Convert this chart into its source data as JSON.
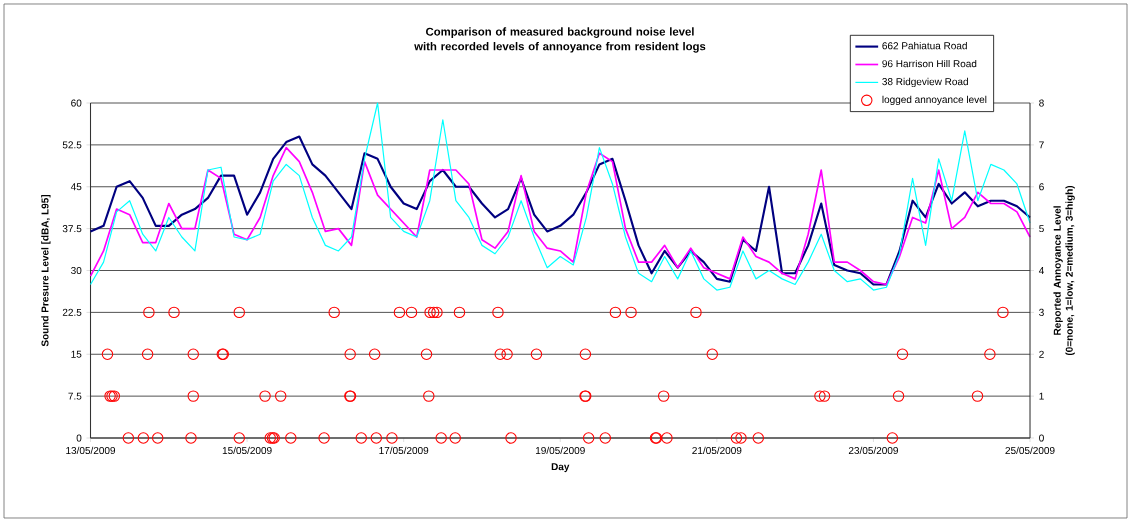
{
  "chart_data": {
    "type": "line",
    "title": "Comparison of measured background noise level with recorded levels of annoyance from resident logs",
    "xlabel": "Day",
    "ylabel": "Sound Presure Level  [dBA, L95]",
    "y2label": "Reported Annoyance Level (0=none, 1=low, 2=medium, 3=high)",
    "x": [
      "2009-05-13T00:00",
      "2009-05-13T04:00",
      "2009-05-13T08:00",
      "2009-05-13T12:00",
      "2009-05-13T16:00",
      "2009-05-13T20:00",
      "2009-05-14T00:00",
      "2009-05-14T04:00",
      "2009-05-14T08:00",
      "2009-05-14T12:00",
      "2009-05-14T16:00",
      "2009-05-14T20:00",
      "2009-05-15T00:00",
      "2009-05-15T04:00",
      "2009-05-15T08:00",
      "2009-05-15T12:00",
      "2009-05-15T16:00",
      "2009-05-15T20:00",
      "2009-05-16T00:00",
      "2009-05-16T04:00",
      "2009-05-16T08:00",
      "2009-05-16T12:00",
      "2009-05-16T16:00",
      "2009-05-16T20:00",
      "2009-05-17T00:00",
      "2009-05-17T04:00",
      "2009-05-17T08:00",
      "2009-05-17T12:00",
      "2009-05-17T16:00",
      "2009-05-17T20:00",
      "2009-05-18T00:00",
      "2009-05-18T04:00",
      "2009-05-18T08:00",
      "2009-05-18T12:00",
      "2009-05-18T16:00",
      "2009-05-18T20:00",
      "2009-05-19T00:00",
      "2009-05-19T04:00",
      "2009-05-19T08:00",
      "2009-05-19T12:00",
      "2009-05-19T16:00",
      "2009-05-19T20:00",
      "2009-05-20T00:00",
      "2009-05-20T04:00",
      "2009-05-20T08:00",
      "2009-05-20T12:00",
      "2009-05-20T16:00",
      "2009-05-20T20:00",
      "2009-05-21T00:00",
      "2009-05-21T04:00",
      "2009-05-21T08:00",
      "2009-05-21T12:00",
      "2009-05-21T16:00",
      "2009-05-21T20:00",
      "2009-05-22T00:00",
      "2009-05-22T04:00",
      "2009-05-22T08:00",
      "2009-05-22T12:00",
      "2009-05-22T16:00",
      "2009-05-22T20:00",
      "2009-05-23T00:00",
      "2009-05-23T04:00",
      "2009-05-23T08:00",
      "2009-05-23T12:00",
      "2009-05-23T16:00",
      "2009-05-23T20:00",
      "2009-05-24T00:00",
      "2009-05-24T04:00",
      "2009-05-24T08:00",
      "2009-05-24T12:00",
      "2009-05-24T16:00",
      "2009-05-24T20:00",
      "2009-05-25T00:00"
    ],
    "xlim": [
      "2009-05-13",
      "2009-05-25"
    ],
    "xticks": [
      {
        "value": "2009-05-13",
        "label": "13/05/2009"
      },
      {
        "value": "2009-05-15",
        "label": "15/05/2009"
      },
      {
        "value": "2009-05-17",
        "label": "17/05/2009"
      },
      {
        "value": "2009-05-19",
        "label": "19/05/2009"
      },
      {
        "value": "2009-05-21",
        "label": "21/05/2009"
      },
      {
        "value": "2009-05-23",
        "label": "23/05/2009"
      },
      {
        "value": "2009-05-25",
        "label": "25/05/2009"
      }
    ],
    "ylim": [
      0,
      60
    ],
    "yticks": [
      0,
      7.5,
      15,
      22.5,
      30,
      37.5,
      45,
      52.5,
      60
    ],
    "y2lim": [
      0,
      8
    ],
    "y2ticks": [
      0,
      1,
      2,
      3,
      4,
      5,
      6,
      7,
      8
    ],
    "grid": "y",
    "legend": "top right",
    "series": [
      {
        "name": "662 Pahiatua Road",
        "color": "#000080",
        "values": [
          37,
          38,
          45,
          46,
          43,
          38,
          38,
          40,
          41,
          43,
          47,
          47,
          40,
          44,
          50,
          53,
          54,
          49,
          47,
          44,
          41,
          51,
          50,
          45,
          42,
          41,
          46,
          48,
          45,
          45,
          42,
          39.5,
          41,
          46.5,
          40,
          37,
          38,
          40,
          44,
          49,
          50,
          42.5,
          34.5,
          29.5,
          33.5,
          30.5,
          33.5,
          31.5,
          28.5,
          28,
          35.5,
          33.5,
          45,
          29.5,
          29.5,
          34.5,
          42,
          31,
          30,
          29.5,
          27.5,
          27.5,
          33.5,
          42.5,
          39.5,
          45.5,
          42,
          44,
          41.5,
          42.5,
          42.5,
          41.5,
          39.5
        ]
      },
      {
        "name": "96 Harrison Hill Road",
        "color": "#ff00ff",
        "values": [
          29,
          33.5,
          41,
          40,
          35,
          35,
          42,
          37.5,
          37.5,
          48,
          46.5,
          36.5,
          35.5,
          39.5,
          47,
          52,
          49.5,
          44,
          37,
          37.5,
          34.5,
          49.5,
          43.5,
          41,
          38.5,
          36,
          48,
          48,
          48,
          45.5,
          35.5,
          34,
          37,
          47,
          37,
          34,
          33.5,
          31.5,
          44,
          51,
          49.5,
          37.5,
          31.5,
          31.5,
          34.5,
          30.5,
          34,
          30.5,
          29.5,
          28.5,
          36,
          32.5,
          31.5,
          29.5,
          28.5,
          36.5,
          48,
          31.5,
          31.5,
          30,
          28,
          27.5,
          32.5,
          39.5,
          38.5,
          48,
          37.5,
          39.5,
          44,
          42,
          42,
          40.5,
          36
        ]
      },
      {
        "name": "38 Ridgeview  Road",
        "color": "#00ffff",
        "values": [
          27.5,
          31.5,
          40.5,
          42.5,
          36.5,
          33.5,
          39.5,
          36,
          33.5,
          48,
          48.5,
          36,
          35.5,
          36.5,
          46,
          49,
          47,
          39.5,
          34.5,
          33.5,
          36,
          50,
          60,
          39.5,
          37,
          36,
          42.5,
          57,
          42.5,
          39.5,
          34.5,
          33,
          36,
          42.5,
          36,
          30.5,
          32.5,
          31,
          39.5,
          52,
          45.5,
          36,
          29.5,
          28,
          32.5,
          28.5,
          33.5,
          28.5,
          26.5,
          27,
          33.5,
          28.5,
          30,
          28.5,
          27.5,
          31.5,
          36.5,
          30,
          28,
          28.5,
          26.5,
          27,
          33,
          46.5,
          34.5,
          50,
          42.5,
          55,
          42.5,
          49,
          48,
          45.5,
          38.5
        ]
      },
      {
        "name": "logged annoyance level",
        "type": "scatter",
        "axis": "y2",
        "marker": "circle",
        "color": "#ff0000",
        "x": [
          "2009-05-13T17:54",
          "2009-05-14T01:36",
          "2009-05-14T21:36",
          "2009-05-16T02:42",
          "2009-05-16T22:42",
          "2009-05-17T02:24",
          "2009-05-17T08:06",
          "2009-05-17T09:12",
          "2009-05-17T10:12",
          "2009-05-17T17:06",
          "2009-05-18T04:54",
          "2009-05-19T16:54",
          "2009-05-19T21:42",
          "2009-05-20T17:36",
          "2009-05-24T15:42",
          "2009-05-13T05:12",
          "2009-05-13T17:30",
          "2009-05-14T07:30",
          "2009-05-14T16:24",
          "2009-05-14T16:42",
          "2009-05-16T07:36",
          "2009-05-16T15:06",
          "2009-05-17T07:00",
          "2009-05-18T05:36",
          "2009-05-18T07:42",
          "2009-05-18T16:42",
          "2009-05-19T07:42",
          "2009-05-20T22:36",
          "2009-05-23T08:54",
          "2009-05-24T11:42",
          "2009-05-13T06:00",
          "2009-05-13T06:36",
          "2009-05-13T07:18",
          "2009-05-14T07:30",
          "2009-05-15T05:30",
          "2009-05-15T10:18",
          "2009-05-16T07:30",
          "2009-05-16T07:42",
          "2009-05-17T07:42",
          "2009-05-19T07:36",
          "2009-05-19T07:48",
          "2009-05-20T07:42",
          "2009-05-22T07:36",
          "2009-05-22T09:00",
          "2009-05-23T07:42",
          "2009-05-24T07:54",
          "2009-05-13T11:36",
          "2009-05-13T16:12",
          "2009-05-13T20:36",
          "2009-05-14T06:48",
          "2009-05-14T21:36",
          "2009-05-15T07:06",
          "2009-05-15T07:48",
          "2009-05-15T08:18",
          "2009-05-15T13:24",
          "2009-05-15T23:36",
          "2009-05-16T11:00",
          "2009-05-16T15:36",
          "2009-05-16T20:24",
          "2009-05-17T11:30",
          "2009-05-17T15:48",
          "2009-05-18T08:54",
          "2009-05-19T08:42",
          "2009-05-19T13:48",
          "2009-05-20T05:12",
          "2009-05-20T05:30",
          "2009-05-20T08:42",
          "2009-05-21T06:00",
          "2009-05-21T07:24",
          "2009-05-21T12:42",
          "2009-05-23T05:48"
        ],
        "values": [
          3,
          3,
          3,
          3,
          3,
          3,
          3,
          3,
          3,
          3,
          3,
          3,
          3,
          3,
          3,
          2,
          2,
          2,
          2,
          2,
          2,
          2,
          2,
          2,
          2,
          2,
          2,
          2,
          2,
          2,
          1,
          1,
          1,
          1,
          1,
          1,
          1,
          1,
          1,
          1,
          1,
          1,
          1,
          1,
          1,
          1,
          0,
          0,
          0,
          0,
          0,
          0,
          0,
          0,
          0,
          0,
          0,
          0,
          0,
          0,
          0,
          0,
          0,
          0,
          0,
          0,
          0,
          0,
          0,
          0,
          0
        ]
      }
    ]
  }
}
